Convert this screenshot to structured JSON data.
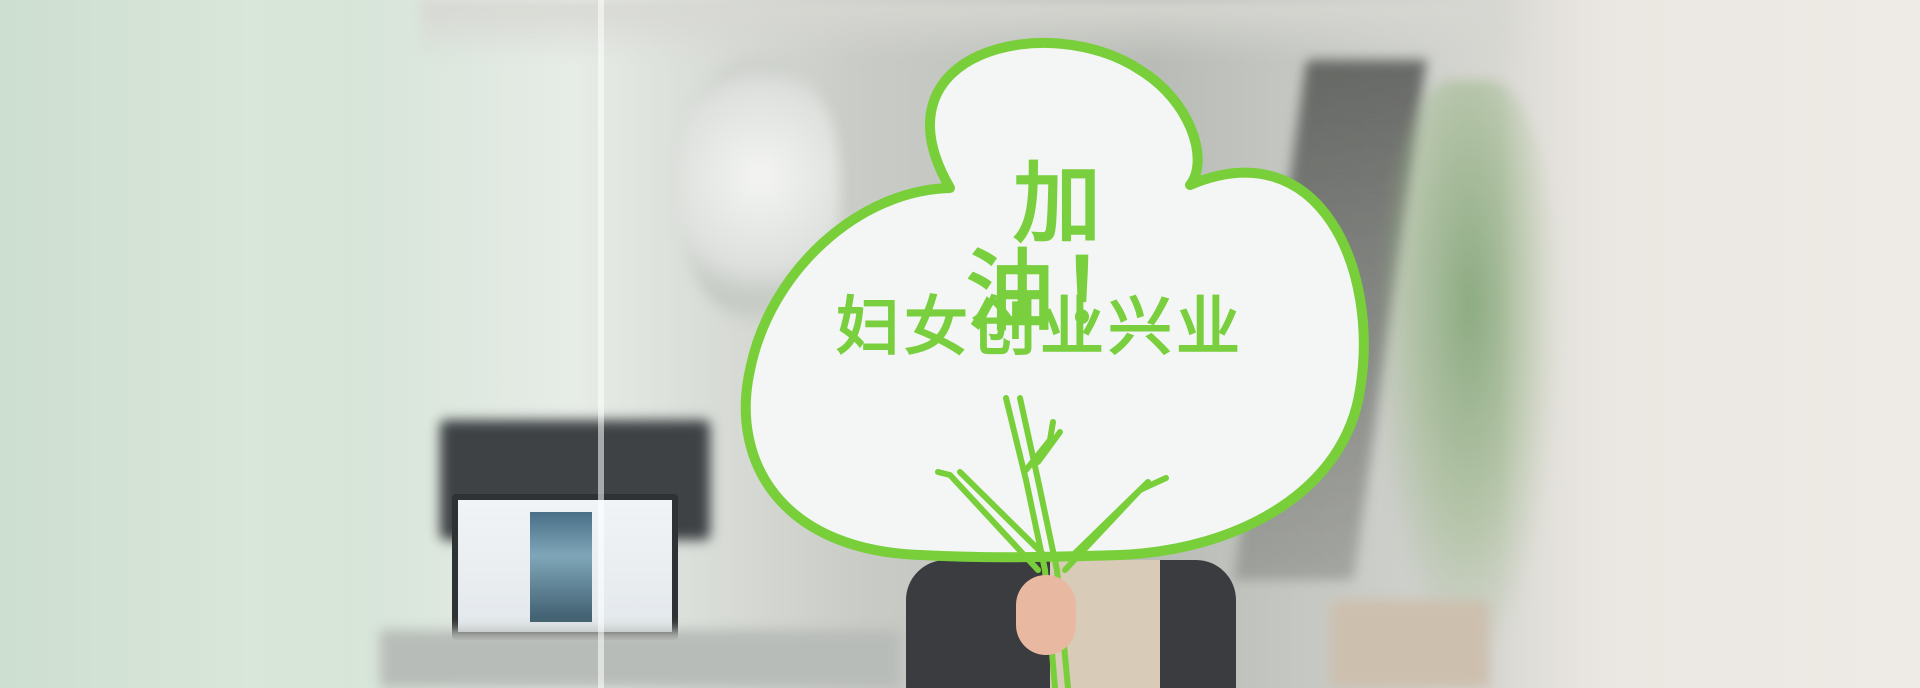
{
  "photo": {
    "sign": {
      "line1": "加油！",
      "line2": "妇女创业兴业"
    },
    "colors": {
      "sign_outline": "#78cf3a",
      "sign_fill": "#f4f5f5",
      "text": "#79cf3d"
    }
  }
}
